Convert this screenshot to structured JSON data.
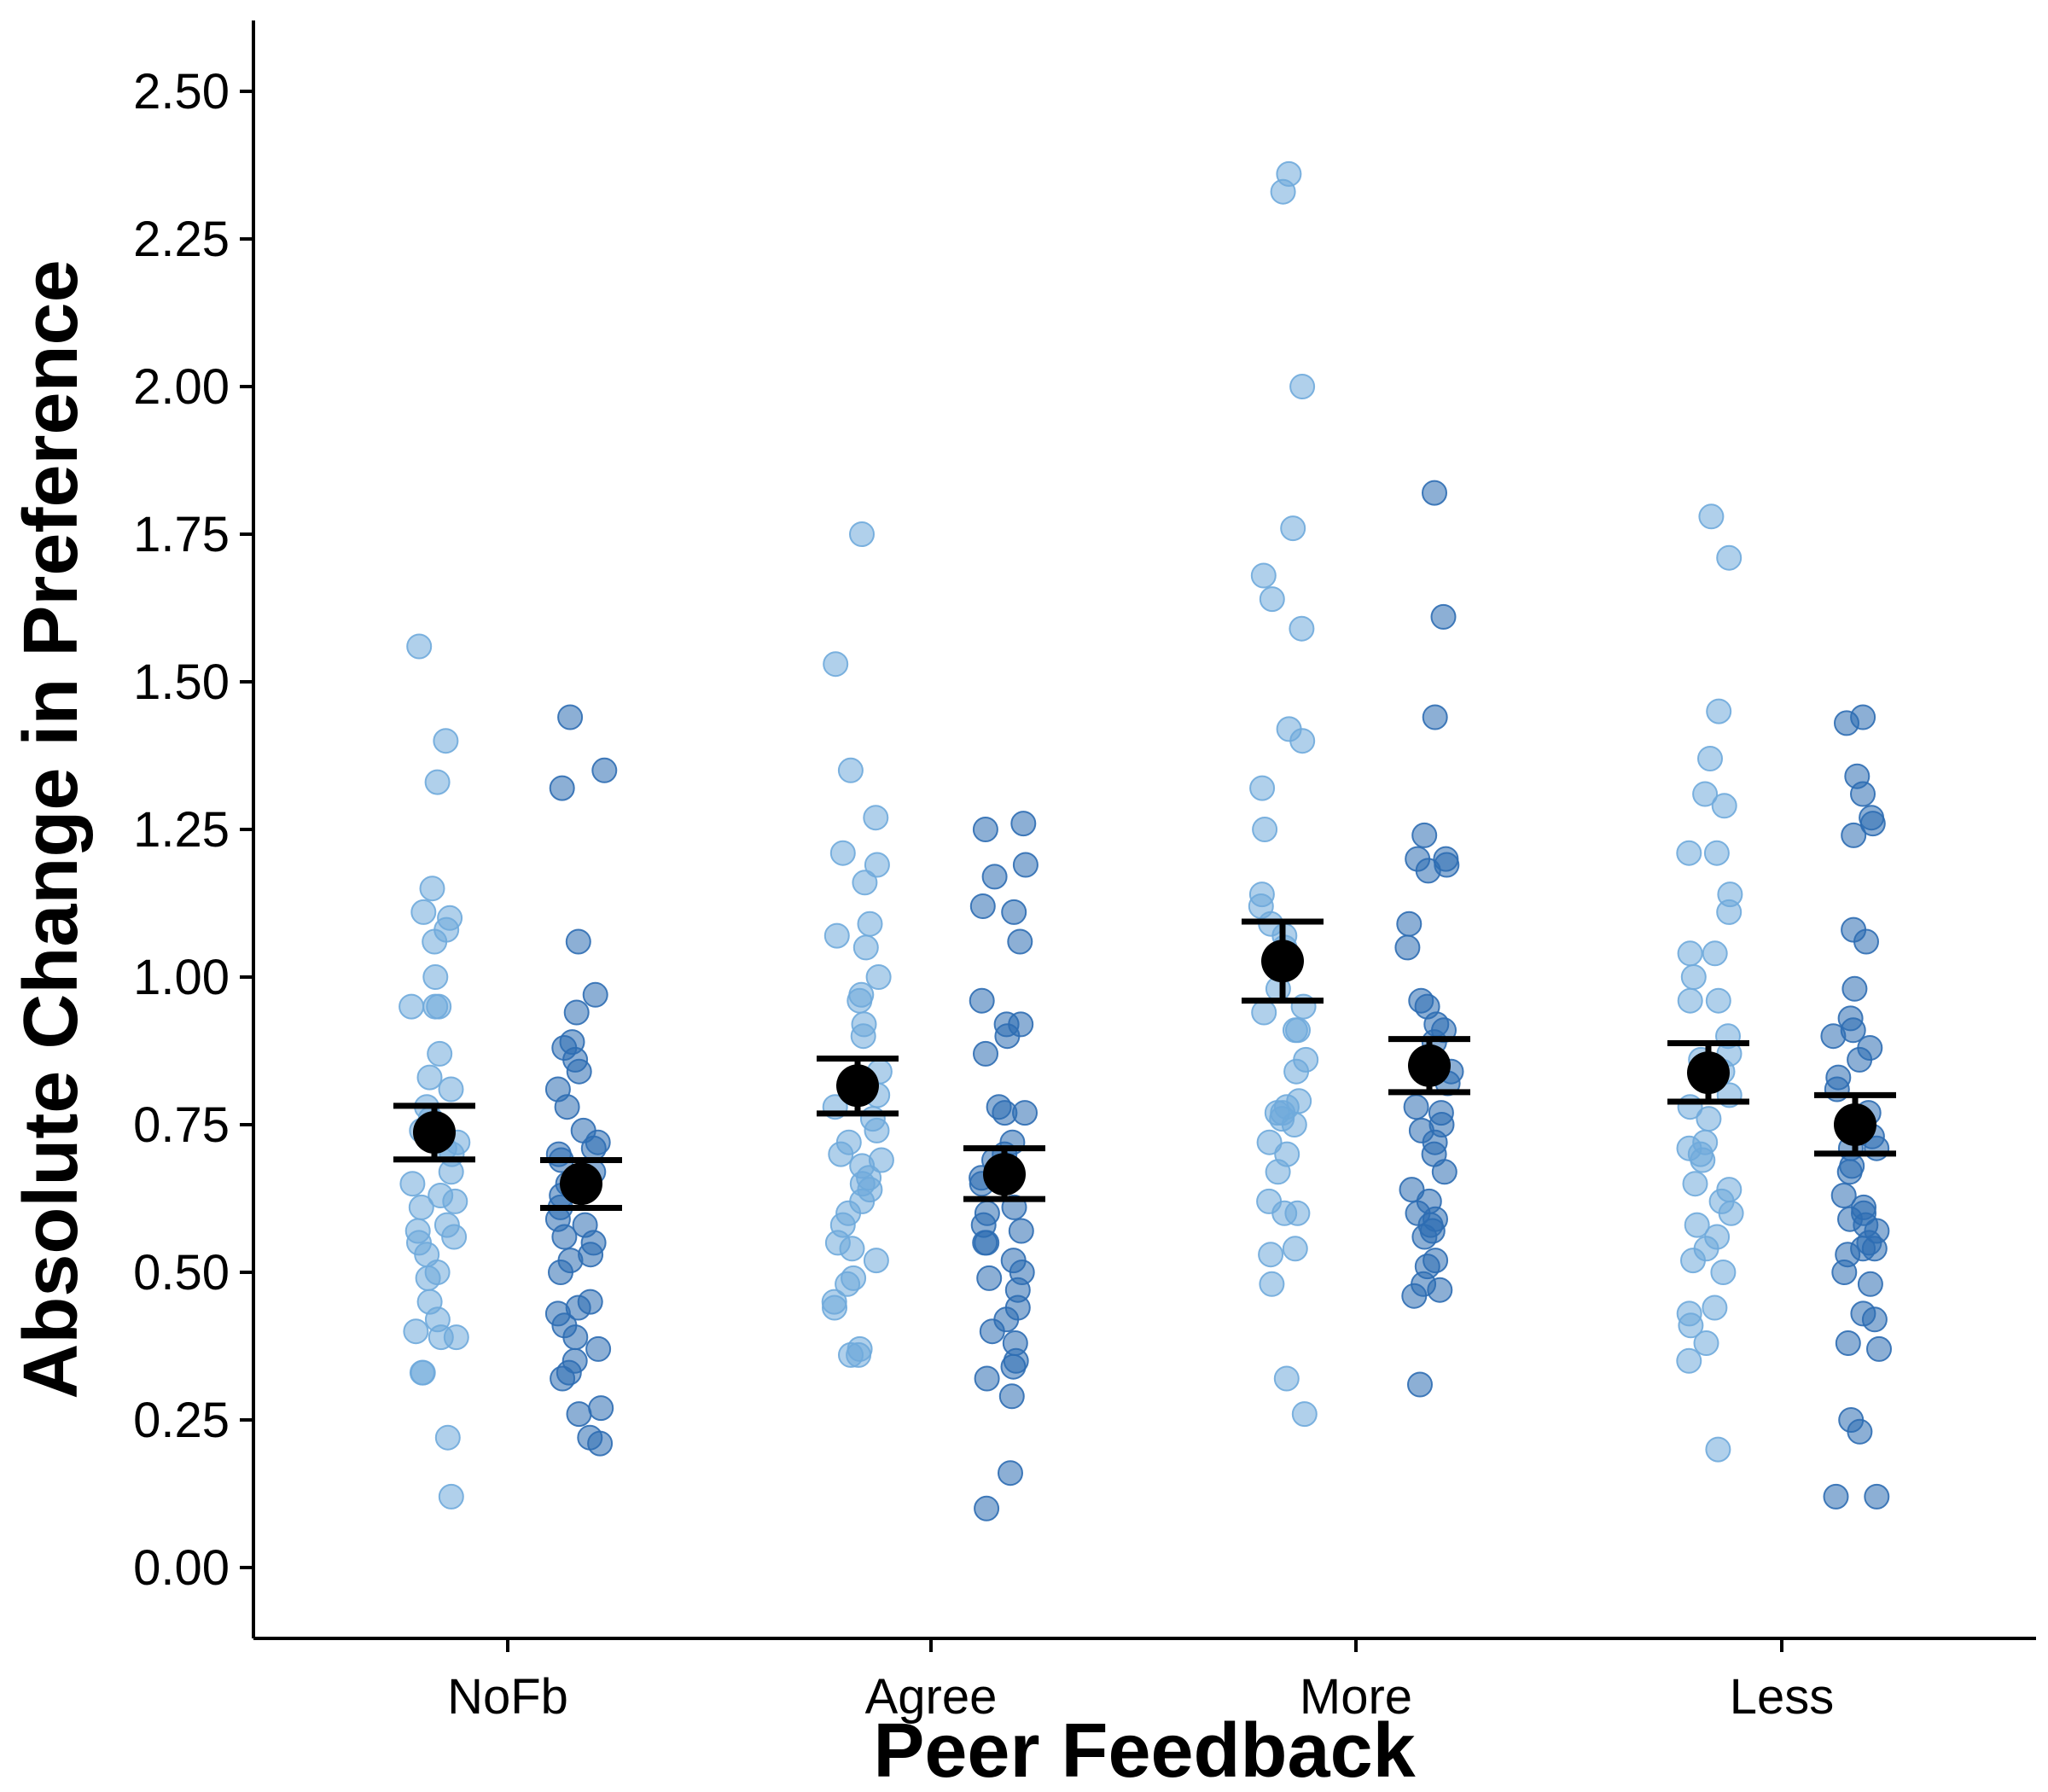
{
  "chart_data": {
    "type": "scatter",
    "title": "",
    "xlabel": "Peer Feedback",
    "ylabel": "Absolute Change in Preference",
    "categories": [
      "NoFb",
      "Agree",
      "More",
      "Less"
    ],
    "ylim": [
      -0.12,
      2.62
    ],
    "yticks": [
      "0.00",
      "0.25",
      "0.50",
      "0.75",
      "1.00",
      "1.25",
      "1.50",
      "1.75",
      "2.00",
      "2.25",
      "2.50"
    ],
    "grid": false,
    "legend": "none",
    "colors": {
      "light": "#6FAADB",
      "dark": "#2D6DB3",
      "summary": "#000000"
    },
    "series": [
      {
        "shade": "light",
        "means": [
          0.737,
          0.816,
          1.027,
          0.838
        ],
        "ci_low": [
          0.691,
          0.769,
          0.96,
          0.789
        ],
        "ci_high": [
          0.782,
          0.862,
          1.094,
          0.888
        ],
        "points": [
          [
            1.56,
            1.4,
            1.33,
            1.15,
            1.11,
            1.1,
            1.08,
            1.06,
            1.0,
            0.95,
            0.95,
            0.95,
            0.87,
            0.83,
            0.81,
            0.78,
            0.76,
            0.74,
            0.72,
            0.71,
            0.7,
            0.67,
            0.65,
            0.63,
            0.62,
            0.61,
            0.58,
            0.57,
            0.56,
            0.55,
            0.53,
            0.5,
            0.49,
            0.45,
            0.42,
            0.4,
            0.39,
            0.39,
            0.33,
            0.33,
            0.22,
            0.12
          ],
          [
            1.75,
            1.53,
            1.35,
            1.27,
            1.21,
            1.19,
            1.16,
            1.09,
            1.07,
            1.05,
            1.0,
            0.97,
            0.96,
            0.92,
            0.9,
            0.84,
            0.8,
            0.78,
            0.76,
            0.74,
            0.72,
            0.7,
            0.69,
            0.68,
            0.66,
            0.65,
            0.64,
            0.62,
            0.6,
            0.58,
            0.55,
            0.54,
            0.52,
            0.49,
            0.48,
            0.45,
            0.44,
            0.37,
            0.36,
            0.36
          ],
          [
            2.36,
            2.33,
            2.0,
            1.76,
            1.68,
            1.64,
            1.59,
            1.42,
            1.4,
            1.32,
            1.25,
            1.14,
            1.12,
            1.09,
            1.07,
            1.05,
            1.02,
            0.98,
            0.95,
            0.94,
            0.91,
            0.91,
            0.86,
            0.84,
            0.79,
            0.78,
            0.77,
            0.77,
            0.76,
            0.75,
            0.72,
            0.7,
            0.67,
            0.62,
            0.6,
            0.6,
            0.54,
            0.53,
            0.48,
            0.32,
            0.26
          ],
          [
            1.78,
            1.71,
            1.45,
            1.37,
            1.31,
            1.29,
            1.21,
            1.21,
            1.14,
            1.11,
            1.04,
            1.04,
            1.0,
            0.96,
            0.96,
            0.9,
            0.87,
            0.86,
            0.84,
            0.8,
            0.78,
            0.76,
            0.72,
            0.71,
            0.7,
            0.69,
            0.65,
            0.64,
            0.62,
            0.6,
            0.58,
            0.56,
            0.54,
            0.52,
            0.5,
            0.44,
            0.43,
            0.41,
            0.38,
            0.35,
            0.2
          ]
        ]
      },
      {
        "shade": "dark",
        "means": [
          0.65,
          0.666,
          0.85,
          0.75
        ],
        "ci_low": [
          0.609,
          0.624,
          0.805,
          0.701
        ],
        "ci_high": [
          0.69,
          0.71,
          0.895,
          0.8
        ],
        "points": [
          [
            1.44,
            1.35,
            1.32,
            1.06,
            0.97,
            0.94,
            0.89,
            0.88,
            0.86,
            0.84,
            0.81,
            0.78,
            0.74,
            0.72,
            0.71,
            0.7,
            0.69,
            0.67,
            0.66,
            0.65,
            0.63,
            0.61,
            0.59,
            0.58,
            0.56,
            0.55,
            0.53,
            0.52,
            0.5,
            0.45,
            0.44,
            0.43,
            0.41,
            0.39,
            0.37,
            0.35,
            0.33,
            0.32,
            0.27,
            0.26,
            0.22,
            0.21
          ],
          [
            1.26,
            1.25,
            1.19,
            1.17,
            1.12,
            1.11,
            1.06,
            0.96,
            0.92,
            0.92,
            0.9,
            0.87,
            0.78,
            0.77,
            0.77,
            0.72,
            0.7,
            0.69,
            0.66,
            0.65,
            0.61,
            0.6,
            0.58,
            0.57,
            0.55,
            0.55,
            0.52,
            0.5,
            0.49,
            0.47,
            0.44,
            0.42,
            0.4,
            0.38,
            0.35,
            0.34,
            0.32,
            0.29,
            0.16,
            0.1
          ],
          [
            1.82,
            1.61,
            1.44,
            1.24,
            1.2,
            1.2,
            1.19,
            1.18,
            1.09,
            1.05,
            0.96,
            0.95,
            0.92,
            0.91,
            0.89,
            0.84,
            0.82,
            0.78,
            0.77,
            0.75,
            0.74,
            0.72,
            0.7,
            0.67,
            0.64,
            0.62,
            0.6,
            0.59,
            0.58,
            0.57,
            0.56,
            0.52,
            0.51,
            0.48,
            0.47,
            0.46,
            0.31
          ],
          [
            1.44,
            1.43,
            1.34,
            1.31,
            1.27,
            1.26,
            1.24,
            1.08,
            1.06,
            0.98,
            0.93,
            0.91,
            0.9,
            0.88,
            0.86,
            0.83,
            0.81,
            0.77,
            0.73,
            0.71,
            0.71,
            0.68,
            0.67,
            0.63,
            0.61,
            0.6,
            0.59,
            0.58,
            0.57,
            0.55,
            0.54,
            0.54,
            0.53,
            0.5,
            0.48,
            0.43,
            0.42,
            0.38,
            0.37,
            0.25,
            0.23,
            0.12,
            0.12
          ]
        ]
      }
    ]
  }
}
